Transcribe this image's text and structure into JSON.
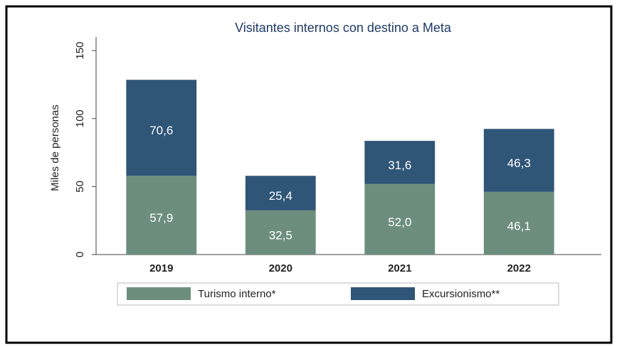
{
  "chart_data": {
    "type": "stacked_bar",
    "title": "Visitantes internos con destino a Meta",
    "y_label": "Miles de personas",
    "categories": [
      "2019",
      "2020",
      "2021",
      "2022"
    ],
    "series": [
      {
        "name": "Turismo interno*",
        "color": "#6d8e7d",
        "values": [
          57.9,
          32.5,
          52.0,
          46.1
        ],
        "value_labels": [
          "57,9",
          "32,5",
          "52,0",
          "46,1"
        ]
      },
      {
        "name": "Excursionismo**",
        "color": "#2f5577",
        "values": [
          70.6,
          25.4,
          31.6,
          46.3
        ],
        "value_labels": [
          "70,6",
          "25,4",
          "31,6",
          "46,3"
        ]
      }
    ],
    "ylim": [
      0,
      160
    ],
    "yticks": [
      0,
      50,
      100,
      150
    ],
    "grid": false,
    "legend": "bottom"
  }
}
